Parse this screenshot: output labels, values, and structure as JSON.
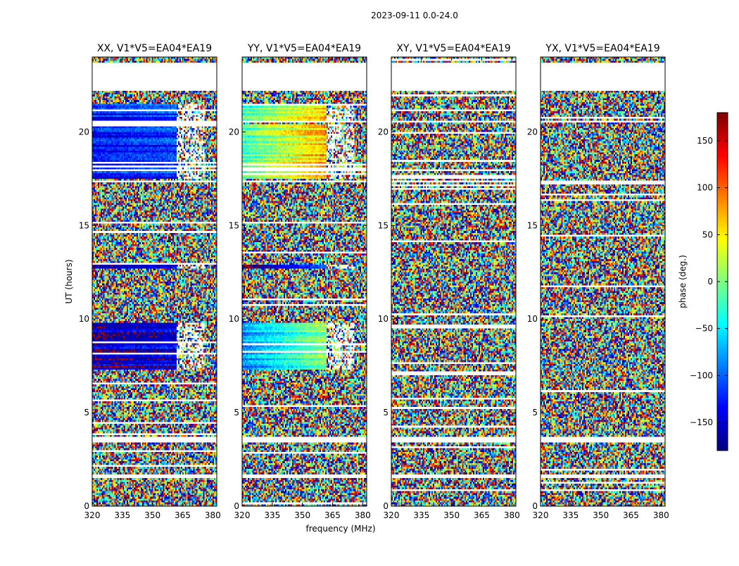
{
  "chart_data": {
    "type": "heatmap",
    "suptitle": "2023-09-11 0.0-24.0",
    "xlabel": "frequency (MHz)",
    "ylabel": "UT (hours)",
    "xlim": [
      320,
      382
    ],
    "ylim": [
      0,
      24
    ],
    "xticks": [
      320,
      335,
      350,
      365,
      380
    ],
    "xtick_labels": [
      "320",
      "335",
      "350",
      "365",
      "380"
    ],
    "yticks": [
      0,
      5,
      10,
      15,
      20
    ],
    "ytick_labels": [
      "0",
      "5",
      "10",
      "15",
      "20"
    ],
    "panels": [
      {
        "name": "xx",
        "title": "XX, V1*V5=EA04*EA19",
        "mode": "xx"
      },
      {
        "name": "yy",
        "title": "YY, V1*V5=EA04*EA19",
        "mode": "yy"
      },
      {
        "name": "xy",
        "title": "XY, V1*V5=EA04*EA19",
        "mode": "noise"
      },
      {
        "name": "yx",
        "title": "YX, V1*V5=EA04*EA19",
        "mode": "noise"
      }
    ],
    "colorbar": {
      "label": "phase (deg.)",
      "range": [
        -180,
        180
      ],
      "ticks": [
        -150,
        -100,
        -50,
        0,
        50,
        100,
        150
      ],
      "tick_labels": [
        "−150",
        "−100",
        "−50",
        "0",
        "50",
        "100",
        "150"
      ],
      "colormap": "jet"
    },
    "flagged_ut_ranges": [
      [
        1.5,
        1.65
      ],
      [
        3.4,
        3.65
      ],
      [
        17.3,
        17.45
      ],
      [
        20.5,
        20.6
      ],
      [
        22.2,
        23.7
      ]
    ],
    "structured_phase_ut_ranges": [
      {
        "ut": [
          7.3,
          9.8
        ],
        "xx_phase_deg": -160,
        "yy_phase_deg": -90
      },
      {
        "ut": [
          17.5,
          20.4
        ],
        "xx_phase_deg": -130,
        "yy_phase_deg": -20
      },
      {
        "ut": [
          20.6,
          21.5
        ],
        "xx_phase_deg": -130,
        "yy_phase_deg": -30
      },
      {
        "ut": [
          12.7,
          12.9
        ],
        "xx_phase_deg": 175,
        "yy_phase_deg": -170
      }
    ]
  }
}
